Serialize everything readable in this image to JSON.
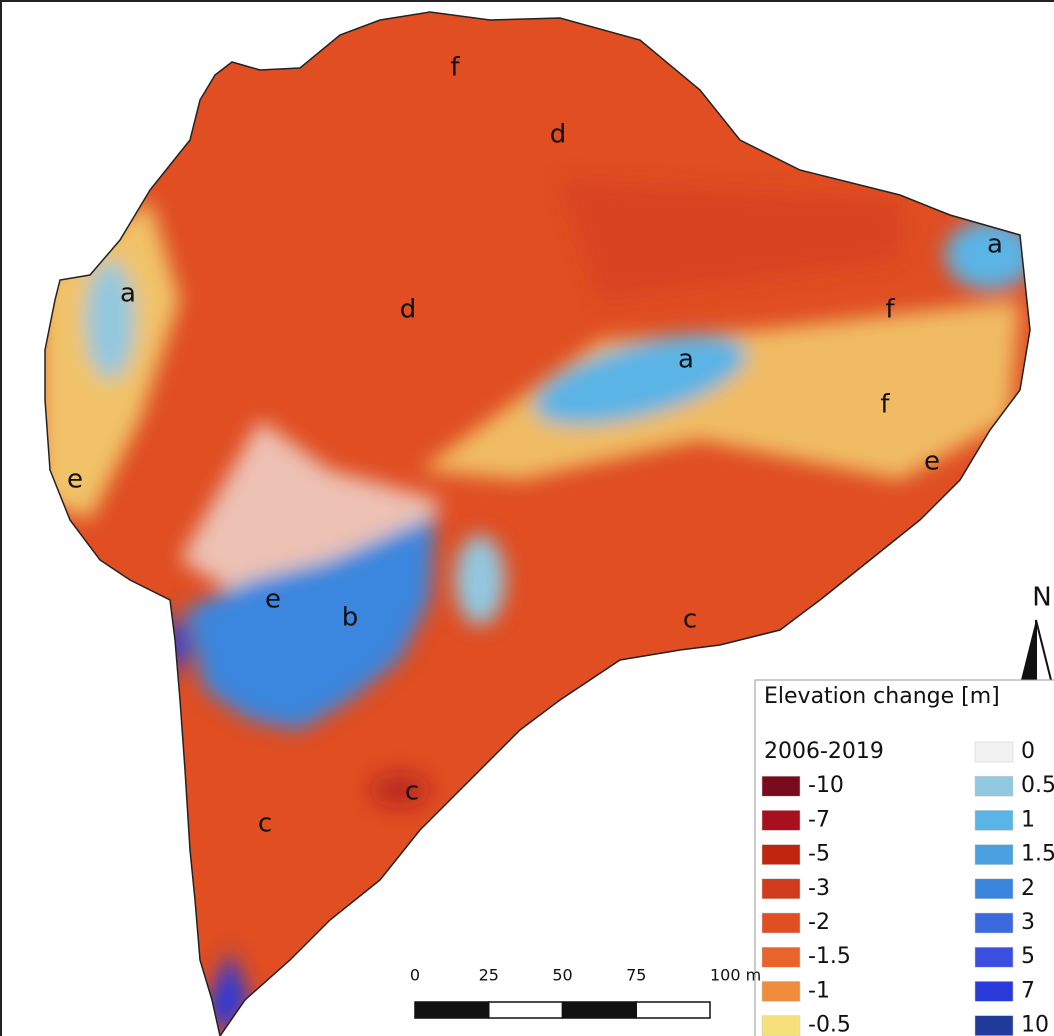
{
  "map": {
    "region_labels": [
      "f",
      "d",
      "a",
      "a",
      "d",
      "f",
      "a",
      "f",
      "e",
      "e",
      "e",
      "b",
      "c",
      "c",
      "c"
    ],
    "north": "N",
    "scale_bar": {
      "ticks": [
        "0",
        "25",
        "50",
        "75",
        "100 m"
      ]
    },
    "legend": {
      "title": "Elevation change [m]",
      "period": "2006-2019",
      "items": [
        {
          "label": "-10",
          "color": "#7a0a1e"
        },
        {
          "label": "-7",
          "color": "#a8101e"
        },
        {
          "label": "-5",
          "color": "#c0260f"
        },
        {
          "label": "-3",
          "color": "#d23a1e"
        },
        {
          "label": "-2",
          "color": "#e04e22"
        },
        {
          "label": "-1.5",
          "color": "#e8642a"
        },
        {
          "label": "-1",
          "color": "#ef8c3e"
        },
        {
          "label": "-0.5",
          "color": "#f5e07a"
        },
        {
          "label": "0",
          "color": "#f2f2f2"
        },
        {
          "label": "0.5",
          "color": "#92c8e0"
        },
        {
          "label": "1",
          "color": "#5ab4e6"
        },
        {
          "label": "1.5",
          "color": "#4aa0e0"
        },
        {
          "label": "2",
          "color": "#3a86de"
        },
        {
          "label": "3",
          "color": "#3a6ade"
        },
        {
          "label": "5",
          "color": "#3a4ee0"
        },
        {
          "label": "7",
          "color": "#2a3ad8"
        },
        {
          "label": "10",
          "color": "#1f3a9a"
        }
      ]
    }
  }
}
